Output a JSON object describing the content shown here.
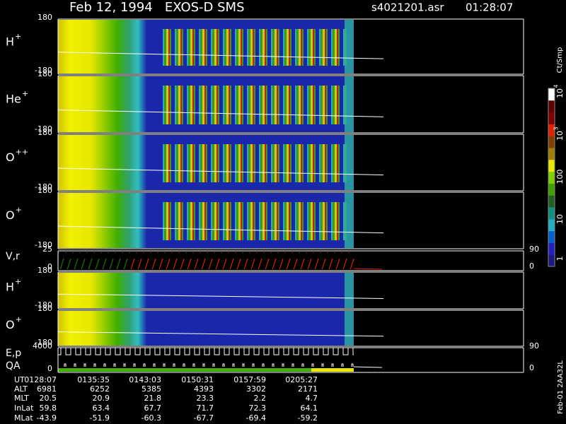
{
  "header": {
    "title": "Feb 12, 1994   EXOS-D SMS",
    "file": "s4021201.asr",
    "time": "01:28:07"
  },
  "panels": [
    {
      "ion": "H",
      "charge": "+",
      "top": 180,
      "bottom": -180
    },
    {
      "ion": "He",
      "charge": "+",
      "top": 180,
      "bottom": -180
    },
    {
      "ion": "O",
      "charge": "++",
      "top": 180,
      "bottom": -180
    },
    {
      "ion": "O",
      "charge": "+",
      "top": 180,
      "bottom": -180
    },
    {
      "label": "V,r",
      "top": 25,
      "bottom": 0,
      "right_top": 90,
      "right_bottom": 0
    },
    {
      "ion": "H",
      "charge": "+",
      "top": 180,
      "bottom": -180
    },
    {
      "ion": "O",
      "charge": "+",
      "top": 180,
      "bottom": -180
    },
    {
      "label": "E,p",
      "label2": "QA",
      "top": 4000,
      "bottom": 0,
      "right_top": 90,
      "right_bottom": 0
    }
  ],
  "colorbar": {
    "unit": "Ct/Smp",
    "powers": [
      {
        "base": "10",
        "exp": "4"
      },
      {
        "base": "10",
        "exp": "3"
      }
    ],
    "labels": [
      "100",
      "10",
      "1"
    ]
  },
  "table": {
    "rows": [
      {
        "label": "UT",
        "values": [
          "0128:07",
          "0135:35",
          "0143:03",
          "0150:31",
          "0157:59",
          "0205:27"
        ]
      },
      {
        "label": "ALT",
        "values": [
          6981,
          6252,
          5385,
          4393,
          3302,
          2171
        ]
      },
      {
        "label": "MLT",
        "values": [
          20.5,
          20.9,
          21.8,
          23.3,
          2.2,
          4.7
        ]
      },
      {
        "label": "InLat",
        "values": [
          59.8,
          63.4,
          67.7,
          71.7,
          72.3,
          64.1
        ]
      },
      {
        "label": "MLat",
        "values": [
          -43.9,
          -51.9,
          -60.3,
          -67.7,
          -69.4,
          -59.2
        ]
      }
    ]
  },
  "footer": {
    "stamp": "Feb-01 2AA32L"
  }
}
